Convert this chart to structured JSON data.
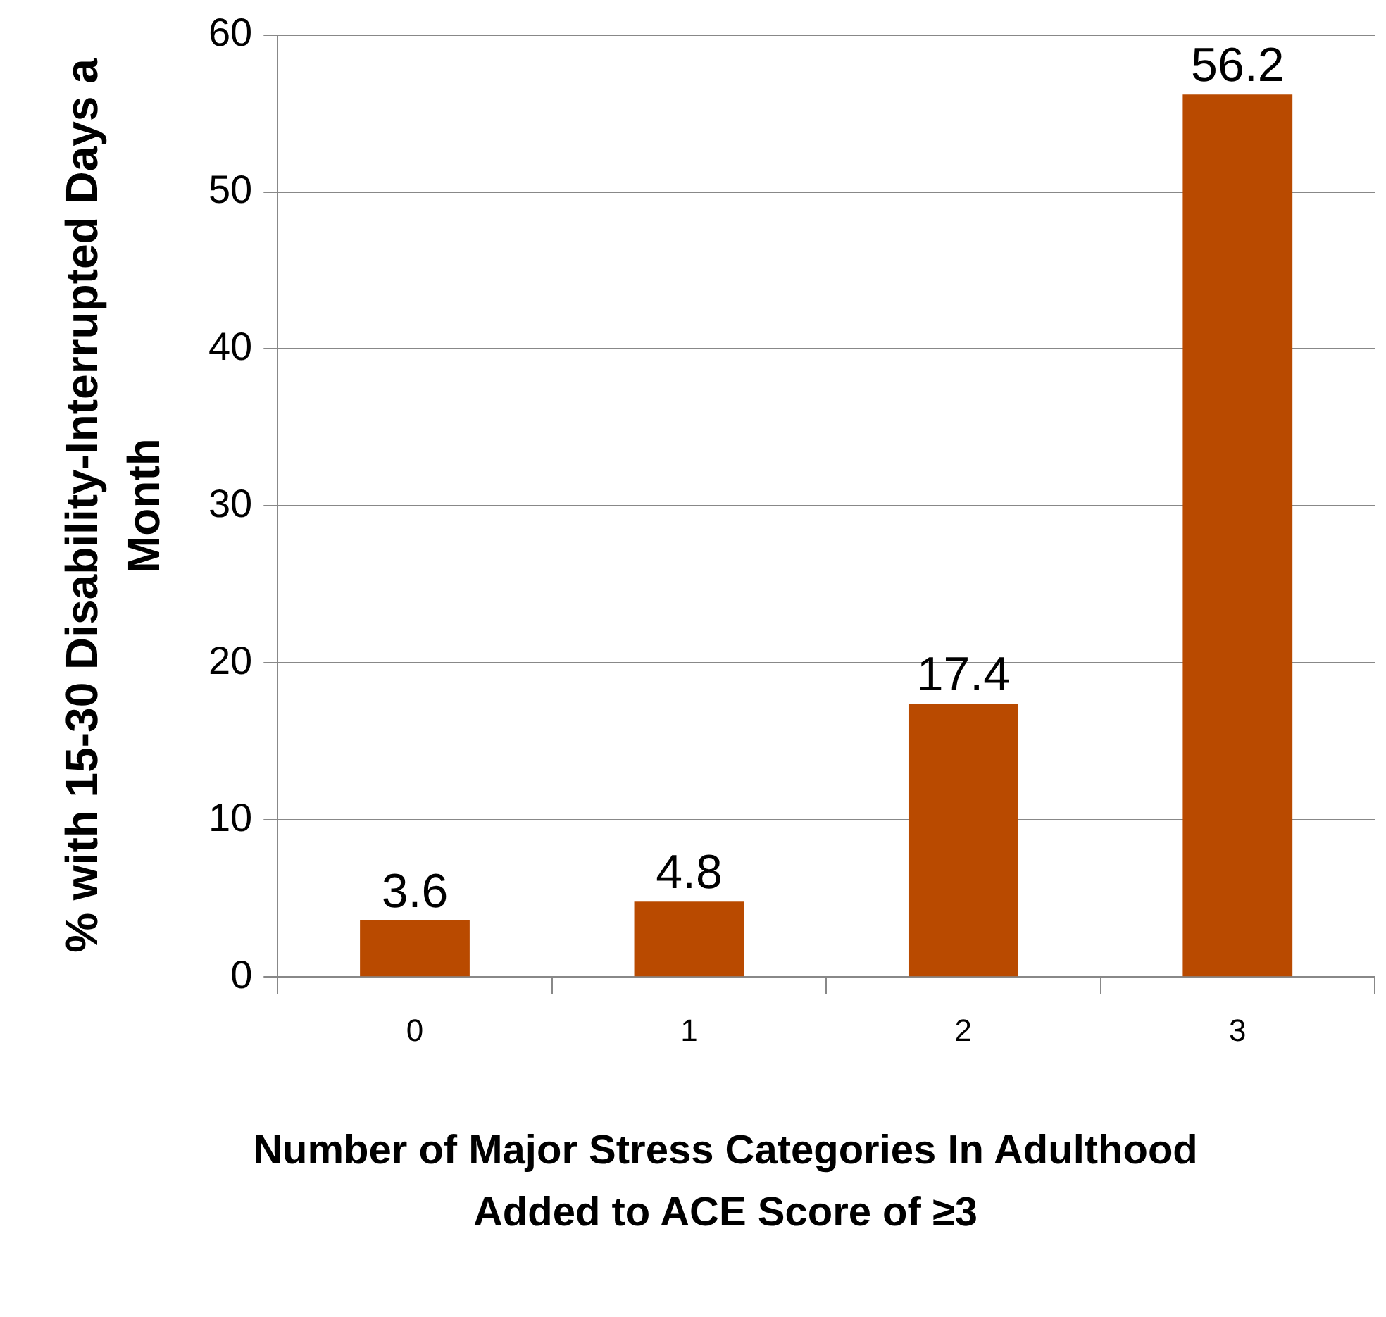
{
  "chart_data": {
    "type": "bar",
    "categories": [
      "0",
      "1",
      "2",
      "3"
    ],
    "values": [
      3.6,
      4.8,
      17.4,
      56.2
    ],
    "color": "#b94a00",
    "xlabel": "Number of Major Stress Categories In Adulthood\nAdded to ACE Score of ≥3",
    "ylabel": "% with 15-30 Disability-Interrupted Days a Month",
    "ylim": [
      0,
      60
    ],
    "yticks": [
      0,
      10,
      20,
      30,
      40,
      50,
      60
    ],
    "grid": "y",
    "data_labels": true,
    "legend": false
  }
}
